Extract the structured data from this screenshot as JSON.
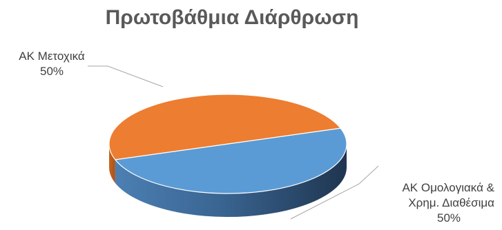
{
  "chart_data": {
    "type": "pie",
    "title": "Πρωτοβάθμια Διάρθρωση",
    "style": "3d",
    "slices": [
      {
        "label_lines": [
          "ΑΚ Ομολογιακά &",
          "Χρημ. Διαθέσιμα"
        ],
        "value": 50,
        "value_label": "50%",
        "color": "#5B9BD5"
      },
      {
        "label_lines": [
          "ΑΚ Μετοχικά"
        ],
        "value": 50,
        "value_label": "50%",
        "color": "#ED7D31"
      }
    ]
  }
}
